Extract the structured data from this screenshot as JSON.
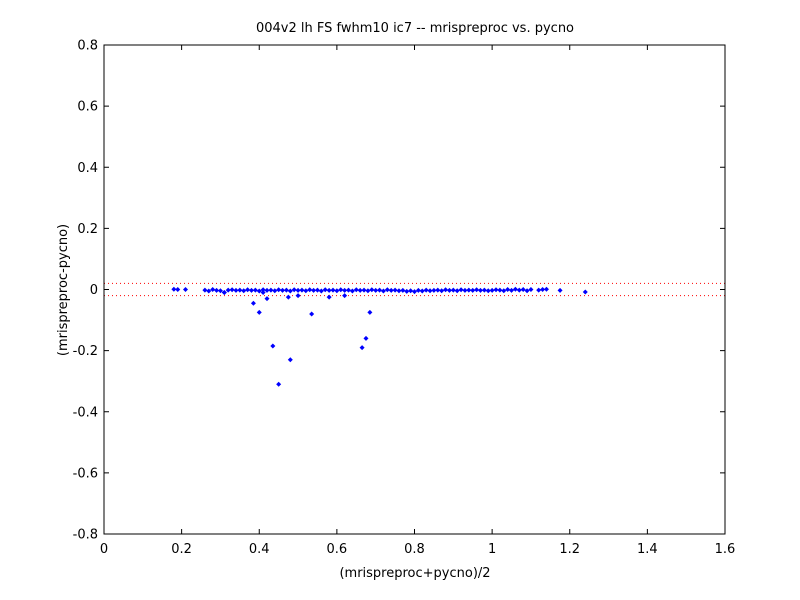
{
  "chart_data": {
    "type": "scatter",
    "title": "004v2 lh FS fwhm10 ic7 -- mrispreproc vs. pycno",
    "xlabel": "(mrispreproc+pycno)/2",
    "ylabel": "(mrispreproc-pycno)",
    "xlim": [
      0,
      1.6
    ],
    "ylim": [
      -0.8,
      0.8
    ],
    "xticks": [
      0,
      0.2,
      0.4,
      0.6,
      0.8,
      1,
      1.2,
      1.4,
      1.6
    ],
    "yticks": [
      -0.8,
      -0.6,
      -0.4,
      -0.2,
      0,
      0.2,
      0.4,
      0.6,
      0.8
    ],
    "xtick_labels": [
      "0",
      "0.2",
      "0.4",
      "0.6",
      "0.8",
      "1",
      "1.2",
      "1.4",
      "1.6"
    ],
    "ytick_labels": [
      "-0.8",
      "-0.6",
      "-0.4",
      "-0.2",
      "0",
      "0.2",
      "0.4",
      "0.6",
      "0.8"
    ],
    "grid": false,
    "reference_lines": [
      0.02,
      -0.02
    ],
    "reference_line_color": "#ff0000",
    "point_color": "#0000ff",
    "series": [
      {
        "points": [
          [
            0.18,
            0.001
          ],
          [
            0.19,
            0.0
          ],
          [
            0.21,
            0.0
          ],
          [
            0.26,
            -0.002
          ],
          [
            0.27,
            -0.005
          ],
          [
            0.28,
            0.0
          ],
          [
            0.29,
            -0.003
          ],
          [
            0.3,
            -0.004
          ],
          [
            0.31,
            -0.01
          ],
          [
            0.32,
            -0.002
          ],
          [
            0.33,
            -0.001
          ],
          [
            0.34,
            -0.003
          ],
          [
            0.35,
            -0.002
          ],
          [
            0.36,
            -0.004
          ],
          [
            0.37,
            -0.001
          ],
          [
            0.38,
            -0.003
          ],
          [
            0.39,
            -0.002
          ],
          [
            0.4,
            -0.005
          ],
          [
            0.41,
            -0.001
          ],
          [
            0.42,
            -0.003
          ],
          [
            0.43,
            -0.002
          ],
          [
            0.44,
            -0.004
          ],
          [
            0.45,
            -0.001
          ],
          [
            0.46,
            -0.003
          ],
          [
            0.47,
            -0.002
          ],
          [
            0.48,
            -0.005
          ],
          [
            0.49,
            -0.001
          ],
          [
            0.5,
            -0.003
          ],
          [
            0.51,
            -0.002
          ],
          [
            0.52,
            -0.004
          ],
          [
            0.53,
            -0.001
          ],
          [
            0.54,
            -0.003
          ],
          [
            0.55,
            -0.002
          ],
          [
            0.56,
            -0.005
          ],
          [
            0.57,
            -0.001
          ],
          [
            0.58,
            -0.003
          ],
          [
            0.59,
            -0.002
          ],
          [
            0.6,
            -0.004
          ],
          [
            0.61,
            -0.001
          ],
          [
            0.62,
            -0.003
          ],
          [
            0.63,
            -0.002
          ],
          [
            0.64,
            -0.005
          ],
          [
            0.65,
            -0.001
          ],
          [
            0.66,
            -0.003
          ],
          [
            0.67,
            -0.002
          ],
          [
            0.68,
            -0.004
          ],
          [
            0.69,
            -0.001
          ],
          [
            0.7,
            -0.003
          ],
          [
            0.71,
            -0.002
          ],
          [
            0.72,
            -0.005
          ],
          [
            0.73,
            -0.001
          ],
          [
            0.74,
            -0.003
          ],
          [
            0.75,
            -0.002
          ],
          [
            0.76,
            -0.004
          ],
          [
            0.77,
            -0.003
          ],
          [
            0.78,
            -0.006
          ],
          [
            0.79,
            -0.004
          ],
          [
            0.8,
            -0.007
          ],
          [
            0.81,
            -0.003
          ],
          [
            0.82,
            -0.005
          ],
          [
            0.83,
            -0.002
          ],
          [
            0.84,
            -0.004
          ],
          [
            0.85,
            -0.003
          ],
          [
            0.86,
            -0.002
          ],
          [
            0.87,
            -0.004
          ],
          [
            0.88,
            -0.001
          ],
          [
            0.89,
            -0.003
          ],
          [
            0.9,
            -0.002
          ],
          [
            0.91,
            -0.004
          ],
          [
            0.92,
            -0.001
          ],
          [
            0.93,
            -0.003
          ],
          [
            0.94,
            -0.002
          ],
          [
            0.95,
            -0.003
          ],
          [
            0.96,
            -0.001
          ],
          [
            0.97,
            -0.003
          ],
          [
            0.98,
            -0.002
          ],
          [
            0.99,
            -0.004
          ],
          [
            1.0,
            -0.003
          ],
          [
            1.01,
            -0.001
          ],
          [
            1.02,
            -0.002
          ],
          [
            1.03,
            -0.004
          ],
          [
            1.04,
            0.0
          ],
          [
            1.05,
            -0.003
          ],
          [
            1.06,
            0.001
          ],
          [
            1.07,
            -0.002
          ],
          [
            1.08,
            0.0
          ],
          [
            1.09,
            -0.004
          ],
          [
            1.1,
            0.0
          ],
          [
            1.12,
            -0.002
          ],
          [
            1.13,
            0.0
          ],
          [
            1.14,
            0.001
          ],
          [
            1.175,
            -0.003
          ],
          [
            1.24,
            -0.008
          ],
          [
            0.31,
            -0.01
          ],
          [
            0.385,
            -0.045
          ],
          [
            0.4,
            -0.075
          ],
          [
            0.41,
            -0.01
          ],
          [
            0.42,
            -0.03
          ],
          [
            0.435,
            -0.185
          ],
          [
            0.45,
            -0.31
          ],
          [
            0.475,
            -0.025
          ],
          [
            0.48,
            -0.23
          ],
          [
            0.5,
            -0.02
          ],
          [
            0.535,
            -0.08
          ],
          [
            0.58,
            -0.025
          ],
          [
            0.62,
            -0.02
          ],
          [
            0.665,
            -0.19
          ],
          [
            0.675,
            -0.16
          ],
          [
            0.685,
            -0.075
          ]
        ]
      }
    ]
  }
}
